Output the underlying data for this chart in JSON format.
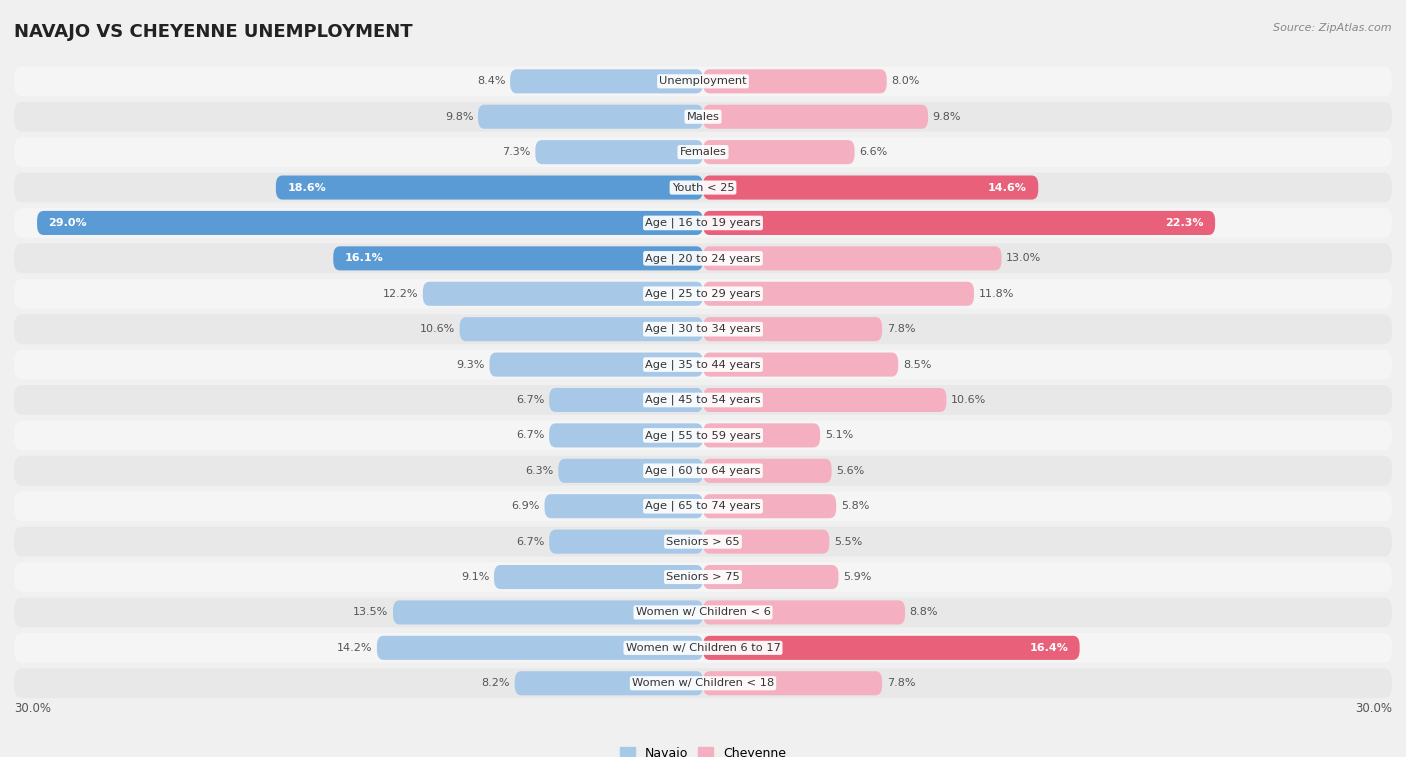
{
  "title": "NAVAJO VS CHEYENNE UNEMPLOYMENT",
  "source": "Source: ZipAtlas.com",
  "categories": [
    "Unemployment",
    "Males",
    "Females",
    "Youth < 25",
    "Age | 16 to 19 years",
    "Age | 20 to 24 years",
    "Age | 25 to 29 years",
    "Age | 30 to 34 years",
    "Age | 35 to 44 years",
    "Age | 45 to 54 years",
    "Age | 55 to 59 years",
    "Age | 60 to 64 years",
    "Age | 65 to 74 years",
    "Seniors > 65",
    "Seniors > 75",
    "Women w/ Children < 6",
    "Women w/ Children 6 to 17",
    "Women w/ Children < 18"
  ],
  "navajo": [
    8.4,
    9.8,
    7.3,
    18.6,
    29.0,
    16.1,
    12.2,
    10.6,
    9.3,
    6.7,
    6.7,
    6.3,
    6.9,
    6.7,
    9.1,
    13.5,
    14.2,
    8.2
  ],
  "cheyenne": [
    8.0,
    9.8,
    6.6,
    14.6,
    22.3,
    13.0,
    11.8,
    7.8,
    8.5,
    10.6,
    5.1,
    5.6,
    5.8,
    5.5,
    5.9,
    8.8,
    16.4,
    7.8
  ],
  "navajo_color_normal": "#a8c8e8",
  "navajo_color_highlight": "#5b9bd5",
  "cheyenne_color_normal": "#f4b0c0",
  "cheyenne_color_highlight": "#e8607a",
  "row_bg_odd": "#f5f5f5",
  "row_bg_even": "#e8e8e8",
  "bg_color": "#f0f0f0",
  "max_value": 30.0,
  "nav_highlight_thresh": 16.0,
  "chey_highlight_thresh": 14.0
}
